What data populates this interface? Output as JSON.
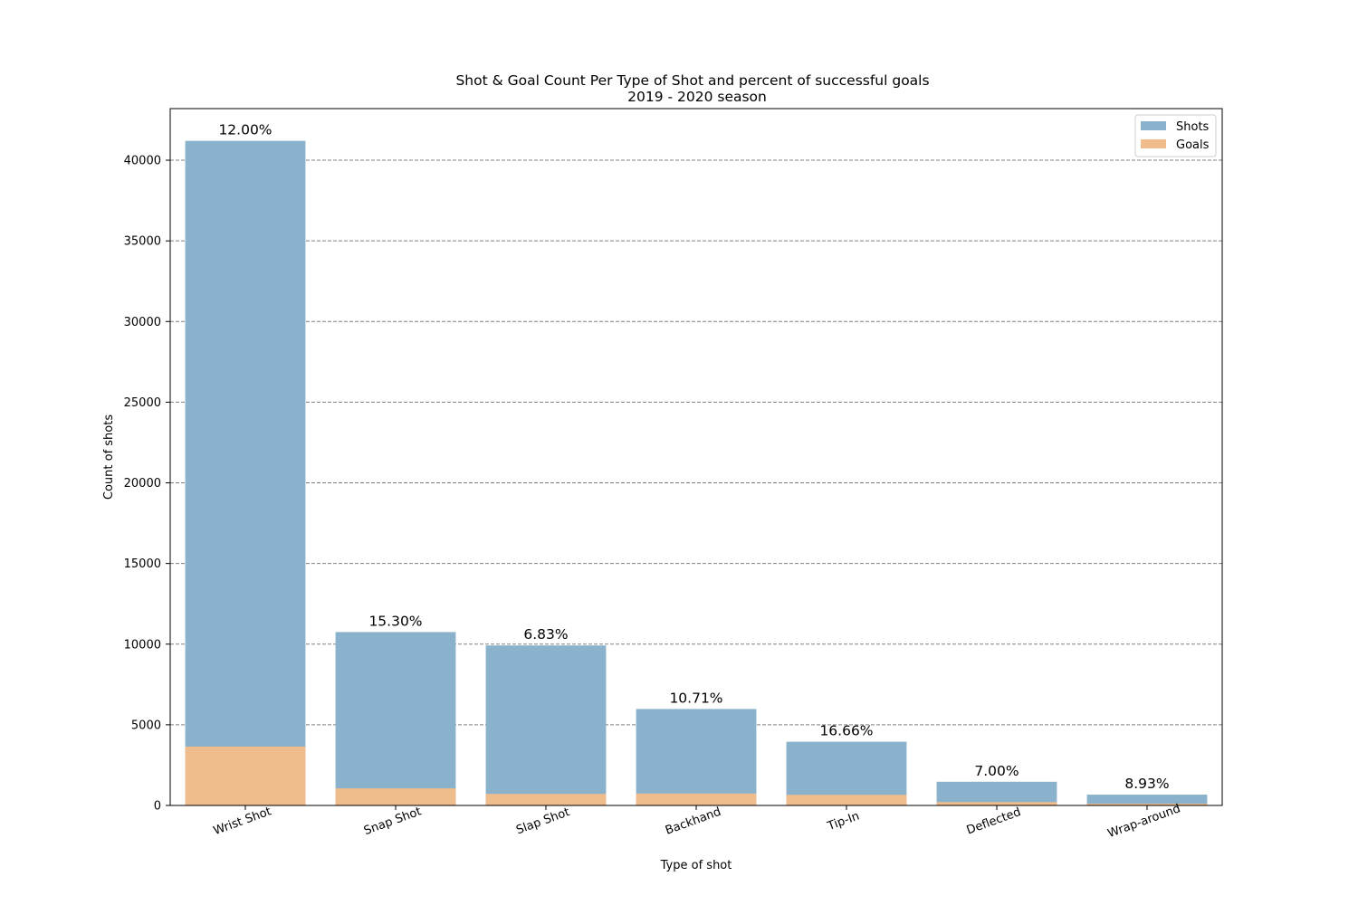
{
  "chart_data": {
    "type": "bar",
    "title": "Shot & Goal Count Per Type of Shot and percent of successful goals",
    "subtitle": "2019 - 2020 season",
    "xlabel": "Type of shot",
    "ylabel": "Count of shots",
    "categories": [
      "Wrist Shot",
      "Snap Shot",
      "Slap Shot",
      "Backhand",
      "Tip-In",
      "Deflected",
      "Wrap-around"
    ],
    "series": [
      {
        "name": "Shots",
        "color": "#8bb2cc",
        "values": [
          41200,
          10750,
          9920,
          5980,
          3950,
          1470,
          670
        ]
      },
      {
        "name": "Goals",
        "color": "#efbd8b",
        "values": [
          3650,
          1060,
          720,
          740,
          660,
          210,
          110
        ]
      }
    ],
    "data_labels": [
      "12.00%",
      "15.30%",
      "6.83%",
      "10.71%",
      "16.66%",
      "7.00%",
      "8.93%"
    ],
    "ylim": [
      0,
      43200
    ],
    "yticks": [
      0,
      5000,
      10000,
      15000,
      20000,
      25000,
      30000,
      35000,
      40000
    ],
    "grid": "y-dashed",
    "legend_position": "top-right"
  }
}
